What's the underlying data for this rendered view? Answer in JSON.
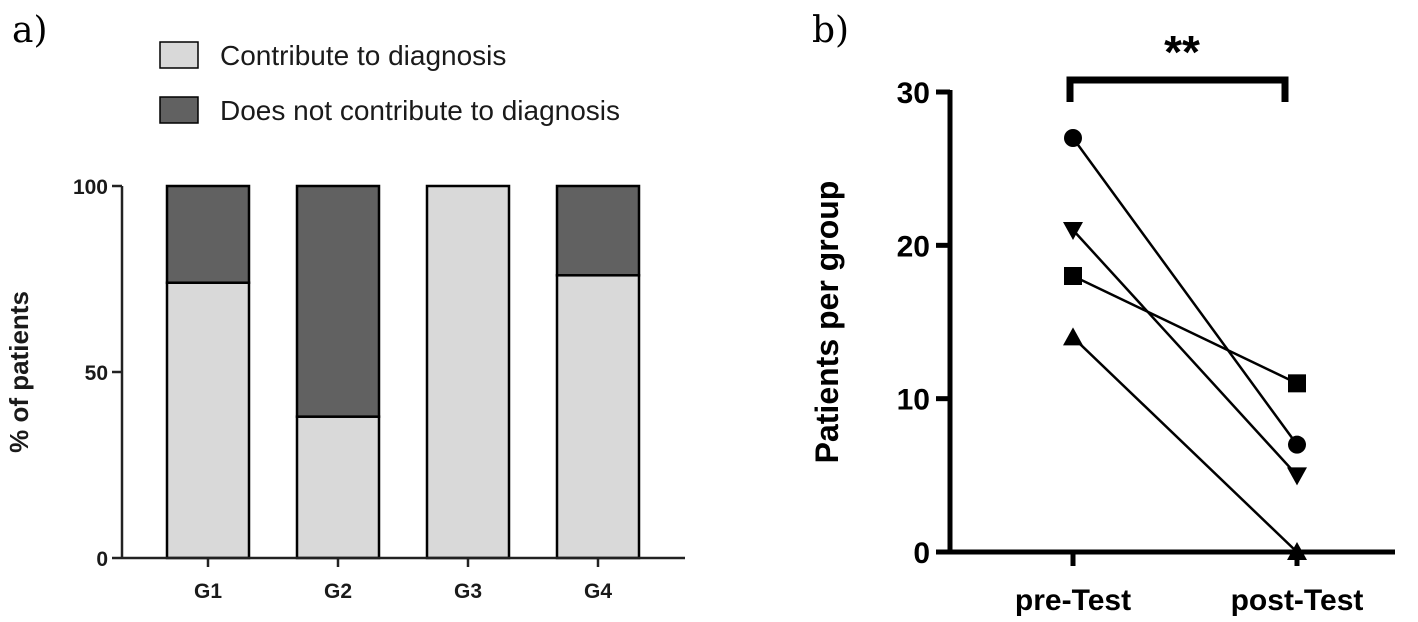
{
  "chart_data": [
    {
      "panel_label": "a)",
      "type": "bar",
      "stacked": true,
      "categories": [
        "G1",
        "G2",
        "G3",
        "G4"
      ],
      "series": [
        {
          "name": "Contribute to diagnosis",
          "color": "#d9d9d9",
          "values": [
            74,
            38,
            100,
            76
          ]
        },
        {
          "name": "Does not contribute to diagnosis",
          "color": "#616161",
          "values": [
            26,
            62,
            0,
            24
          ]
        }
      ],
      "xlabel": "",
      "ylabel": "% of patients",
      "ylim": [
        0,
        100
      ],
      "yticks": [
        0,
        50,
        100
      ],
      "legend_position": "top"
    },
    {
      "panel_label": "b)",
      "type": "line",
      "categories": [
        "pre-Test",
        "post-Test"
      ],
      "series": [
        {
          "marker": "circle",
          "values": [
            27,
            7
          ]
        },
        {
          "marker": "triangle-down",
          "values": [
            21,
            5
          ]
        },
        {
          "marker": "square",
          "values": [
            18,
            11
          ]
        },
        {
          "marker": "triangle-up",
          "values": [
            14,
            0
          ]
        }
      ],
      "xlabel": "",
      "ylabel": "Patients per group",
      "ylim": [
        0,
        30
      ],
      "yticks": [
        0,
        10,
        20,
        30
      ],
      "annotation": "**"
    }
  ]
}
